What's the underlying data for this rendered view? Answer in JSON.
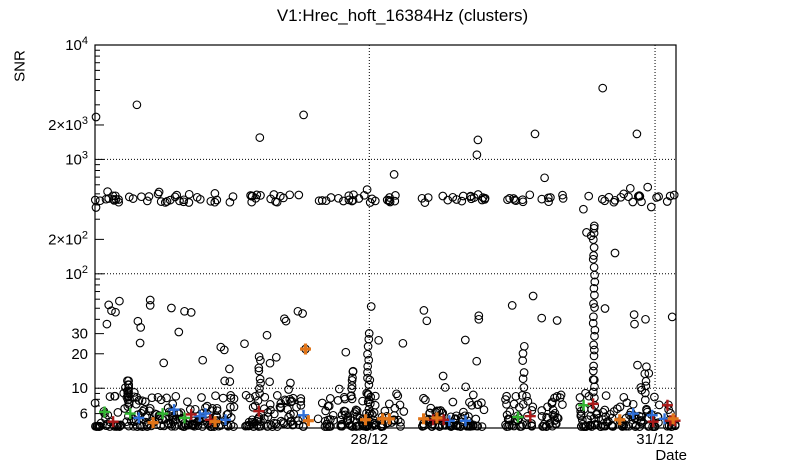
{
  "chart_data": {
    "type": "scatter",
    "title": "V1:Hrec_hoft_16384Hz (clusters)",
    "xlabel": "Date",
    "ylabel": "SNR",
    "x_axis": {
      "unit": "day_of_december",
      "min": 25.12,
      "max": 31.22,
      "ticks": [
        {
          "v": 28,
          "label": "28/12"
        },
        {
          "v": 31,
          "label": "31/12"
        }
      ],
      "gridlines": [
        28,
        31
      ],
      "grid_style": "dotted"
    },
    "y_axis": {
      "scale": "log",
      "min": 4.49,
      "max": 10000,
      "ticks": [
        {
          "v": 6,
          "label": "6"
        },
        {
          "v": 10,
          "label": "10"
        },
        {
          "v": 20,
          "label": "20"
        },
        {
          "v": 30,
          "label": "30"
        },
        {
          "v": 100,
          "label": "10^2"
        },
        {
          "v": 200,
          "label": "2×10^2"
        },
        {
          "v": 1000,
          "label": "10^3"
        },
        {
          "v": 2000,
          "label": "2×10^3"
        },
        {
          "v": 10000,
          "label": "10^4"
        }
      ],
      "gridlines": [
        10,
        100,
        1000
      ],
      "grid_style": "dotted"
    },
    "seed": 7,
    "marker_style": {
      "circle_color": "#000000",
      "circle_radius": 3.8,
      "cross_half_size": 5.5,
      "cross_stroke": 2.4
    },
    "data_segments_days": [
      [
        25.12,
        26.6
      ],
      [
        26.68,
        27.31
      ],
      [
        27.46,
        28.37
      ],
      [
        28.55,
        29.23
      ],
      [
        29.43,
        29.74
      ],
      [
        29.8,
        30.04
      ],
      [
        30.19,
        30.86
      ],
      [
        30.91,
        31.05
      ],
      [
        31.12,
        31.22
      ]
    ],
    "bottom_band": {
      "description": "dense cluster band of black open circles",
      "snr_base": 4.62,
      "log_amp": 0.27,
      "shape": 2.6,
      "fringe_prob": 0.05,
      "points_per_day": 112
    },
    "mid_band": {
      "description": "horizontal band of circles near SNR 450",
      "snr_center": 455,
      "log_spread": 0.072,
      "dip_factor": 0.8,
      "rise_factor": 1.18,
      "points_per_day": 26
    },
    "scatter_fill": {
      "n": 62,
      "snr_min": 8.5,
      "snr_max": 62,
      "bias": 1.7
    },
    "columns": [
      {
        "day": 25.47,
        "snr_lo": 7,
        "snr_hi": 12,
        "n": 14
      },
      {
        "day": 26.85,
        "snr_lo": 9,
        "snr_hi": 19,
        "n": 8
      },
      {
        "day": 27.82,
        "snr_lo": 8,
        "snr_hi": 14,
        "n": 7
      },
      {
        "day": 27.99,
        "snr_lo": 8,
        "snr_hi": 30,
        "n": 11
      },
      {
        "day": 29.62,
        "snr_lo": 10,
        "snr_hi": 24,
        "n": 6
      },
      {
        "day": 30.36,
        "snr_lo": 7,
        "snr_hi": 260,
        "n": 27
      },
      {
        "day": 30.9,
        "snr_lo": 8,
        "snr_hi": 15,
        "n": 6
      }
    ],
    "outlier_points": [
      [
        25.13,
        2350
      ],
      [
        25.13,
        380
      ],
      [
        25.56,
        3000
      ],
      [
        26.85,
        1550
      ],
      [
        27.31,
        2450
      ],
      [
        28.26,
        740
      ],
      [
        29.13,
        1100
      ],
      [
        29.14,
        1480
      ],
      [
        29.74,
        1670
      ],
      [
        29.84,
        690
      ],
      [
        30.45,
        4200
      ],
      [
        30.81,
        1670
      ],
      [
        30.28,
        230
      ],
      [
        30.33,
        215
      ],
      [
        30.36,
        250
      ],
      [
        30.58,
        152
      ],
      [
        25.7,
        59
      ],
      [
        25.7,
        53
      ],
      [
        25.6,
        34
      ],
      [
        26.0,
        31
      ],
      [
        26.06,
        47
      ],
      [
        26.13,
        46
      ],
      [
        27.25,
        47
      ],
      [
        27.3,
        45
      ],
      [
        27.33,
        22
      ],
      [
        29.15,
        43
      ],
      [
        29.15,
        40
      ],
      [
        29.5,
        53
      ],
      [
        29.72,
        64
      ],
      [
        29.81,
        41
      ],
      [
        30.78,
        44
      ],
      [
        30.9,
        40
      ],
      [
        31.18,
        42
      ]
    ],
    "cross_series": [
      {
        "name": "green_crosses",
        "color": "#32b432",
        "points": [
          [
            25.22,
            6.2
          ],
          [
            25.49,
            6.0
          ],
          [
            25.83,
            6.0
          ],
          [
            26.06,
            5.5
          ],
          [
            29.56,
            5.6
          ],
          [
            30.25,
            7.1
          ]
        ]
      },
      {
        "name": "blue_crosses",
        "color": "#2e6fd8",
        "points": [
          [
            25.58,
            5.5
          ],
          [
            25.95,
            6.5
          ],
          [
            26.22,
            5.7
          ],
          [
            26.28,
            6.0
          ],
          [
            26.49,
            5.3
          ],
          [
            27.31,
            5.8
          ],
          [
            28.84,
            5.2
          ],
          [
            29.01,
            5.2
          ],
          [
            30.77,
            6.0
          ],
          [
            30.97,
            5.8
          ],
          [
            31.1,
            5.4
          ]
        ]
      },
      {
        "name": "red_crosses",
        "color": "#aa1a1a",
        "points": [
          [
            25.31,
            5.1
          ],
          [
            26.13,
            5.9
          ],
          [
            26.33,
            5.3
          ],
          [
            26.84,
            6.3
          ],
          [
            28.67,
            5.3
          ],
          [
            28.78,
            5.3
          ],
          [
            29.69,
            5.7
          ],
          [
            30.35,
            7.3
          ],
          [
            30.98,
            5.1
          ],
          [
            31.13,
            7.1
          ],
          [
            31.16,
            5.2
          ],
          [
            31.21,
            5.2
          ]
        ]
      },
      {
        "name": "orange_crosses",
        "color": "#e07418",
        "bold": true,
        "points": [
          [
            25.73,
            5.0
          ],
          [
            26.38,
            5.1
          ],
          [
            27.36,
            5.2
          ],
          [
            27.96,
            5.3
          ],
          [
            28.14,
            5.4
          ],
          [
            28.21,
            5.4
          ],
          [
            28.57,
            5.4
          ],
          [
            28.71,
            5.5
          ],
          [
            30.63,
            5.3
          ],
          [
            31.19,
            5.4
          ],
          [
            27.33,
            22
          ]
        ]
      }
    ]
  }
}
